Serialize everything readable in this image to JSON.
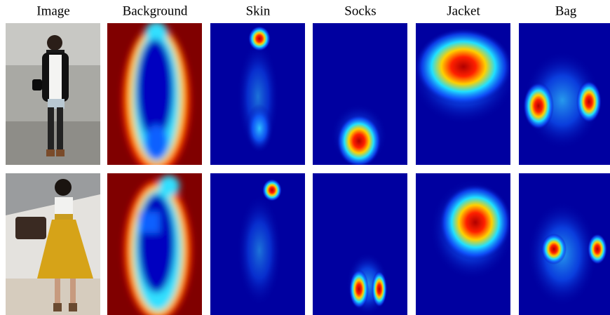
{
  "headers": [
    "Image",
    "Background",
    "Skin",
    "Socks",
    "Jacket",
    "Bag"
  ]
}
